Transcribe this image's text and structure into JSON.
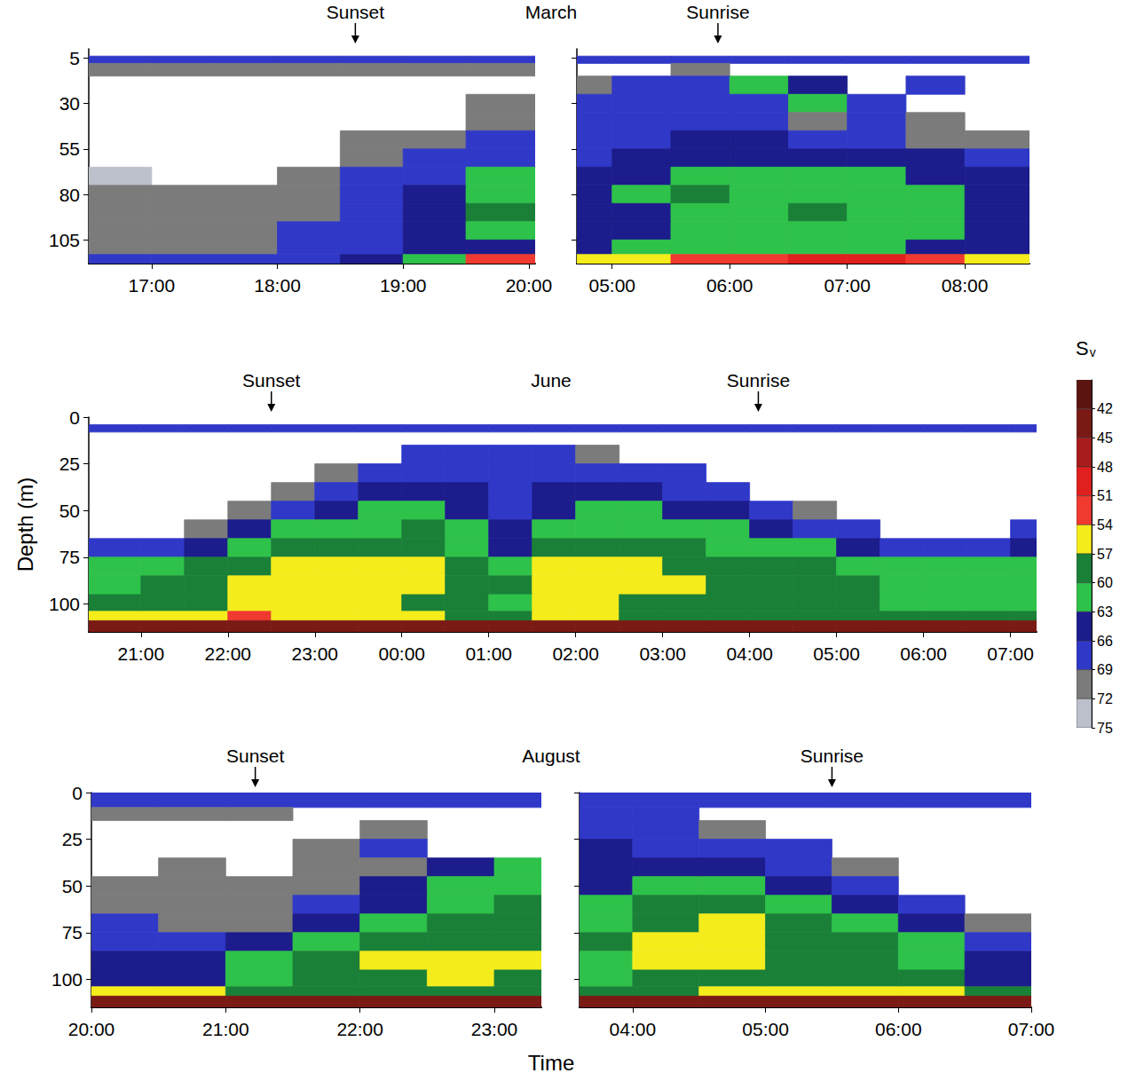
{
  "chart_data": [
    {
      "type": "heatmap",
      "title": "March",
      "xlim": [
        16.5,
        20.05
      ],
      "ylim": [
        0,
        118
      ],
      "xticks": [
        {
          "value": 17,
          "label": "17:00"
        },
        {
          "value": 18,
          "label": "18:00"
        },
        {
          "value": 19,
          "label": "19:00"
        },
        {
          "value": 20,
          "label": "20:00"
        }
      ],
      "yticks": [
        5,
        30,
        55,
        80,
        105
      ],
      "x_bins": [
        16.5,
        17,
        17.5,
        18,
        18.5,
        19,
        19.5,
        20.05
      ],
      "y_bins": [
        0,
        4,
        8,
        15,
        25,
        35,
        45,
        55,
        65,
        75,
        85,
        95,
        105,
        113,
        118
      ],
      "values": [
        [
          null,
          null,
          null,
          null,
          null,
          null,
          null
        ],
        [
          68,
          68,
          68,
          68,
          68,
          68,
          68
        ],
        [
          69,
          69,
          69,
          69,
          69,
          69,
          69
        ],
        [
          null,
          null,
          null,
          null,
          null,
          null,
          null
        ],
        [
          null,
          null,
          null,
          null,
          null,
          null,
          70
        ],
        [
          null,
          null,
          null,
          null,
          null,
          null,
          69
        ],
        [
          null,
          null,
          null,
          null,
          71,
          70,
          68
        ],
        [
          null,
          null,
          null,
          null,
          70,
          68,
          66
        ],
        [
          72,
          null,
          null,
          71,
          68,
          66,
          62
        ],
        [
          71,
          70,
          71,
          69,
          67,
          65,
          60
        ],
        [
          70,
          69,
          70,
          69,
          66,
          64,
          59
        ],
        [
          70,
          69,
          69,
          68,
          66,
          63,
          61
        ],
        [
          70,
          69,
          69,
          68,
          66,
          64,
          63
        ],
        [
          66,
          66,
          66,
          66,
          64,
          62,
          52
        ]
      ],
      "annotations": [
        {
          "text": "Sunset",
          "x": 18.62
        }
      ]
    },
    {
      "type": "heatmap",
      "tick_labels": "x",
      "xlim": [
        4.7,
        8.55
      ],
      "ylim": [
        0,
        118
      ],
      "xticks": [
        {
          "value": 5,
          "label": "05:00"
        },
        {
          "value": 6,
          "label": "06:00"
        },
        {
          "value": 7,
          "label": "07:00"
        },
        {
          "value": 8,
          "label": "08:00"
        }
      ],
      "yticks": [
        5,
        30,
        55,
        80,
        105
      ],
      "x_bins": [
        4.7,
        5,
        5.5,
        6,
        6.5,
        7,
        7.5,
        8,
        8.55
      ],
      "y_bins": [
        0,
        4,
        8,
        15,
        25,
        35,
        45,
        55,
        65,
        75,
        85,
        95,
        105,
        113,
        118
      ],
      "values": [
        [
          null,
          null,
          null,
          null,
          null,
          null,
          null,
          null
        ],
        [
          68,
          68,
          68,
          68,
          68,
          68,
          68,
          68
        ],
        [
          null,
          null,
          70,
          null,
          null,
          null,
          null,
          null
        ],
        [
          69,
          68,
          68,
          62,
          63,
          null,
          66,
          null
        ],
        [
          68,
          67,
          67,
          66,
          60,
          66,
          null,
          null
        ],
        [
          68,
          67,
          66,
          67,
          70,
          67,
          70,
          null
        ],
        [
          67,
          66,
          65,
          65,
          66,
          68,
          69,
          70
        ],
        [
          66,
          65,
          64,
          63,
          64,
          64,
          65,
          66
        ],
        [
          64,
          63,
          61,
          61,
          62,
          62,
          63,
          64
        ],
        [
          63,
          62,
          59,
          60,
          60,
          61,
          61,
          63
        ],
        [
          64,
          63,
          60,
          60,
          59,
          60,
          61,
          63
        ],
        [
          64,
          63,
          62,
          62,
          61,
          61,
          62,
          64
        ],
        [
          63,
          62,
          62,
          62,
          62,
          62,
          63,
          64
        ],
        [
          55,
          55,
          52,
          52,
          50,
          50,
          52,
          55
        ]
      ],
      "annotations": [
        {
          "text": "Sunrise",
          "x": 5.9
        }
      ]
    },
    {
      "type": "heatmap",
      "title": "June",
      "y_label": "Depth (m)",
      "xlim": [
        20.4,
        31.3
      ],
      "ylim": [
        0,
        115
      ],
      "xticks": [
        {
          "value": 21,
          "label": "21:00"
        },
        {
          "value": 22,
          "label": "22:00"
        },
        {
          "value": 23,
          "label": "23:00"
        },
        {
          "value": 24,
          "label": "00:00"
        },
        {
          "value": 25,
          "label": "01:00"
        },
        {
          "value": 26,
          "label": "02:00"
        },
        {
          "value": 27,
          "label": "03:00"
        },
        {
          "value": 28,
          "label": "04:00"
        },
        {
          "value": 29,
          "label": "05:00"
        },
        {
          "value": 30,
          "label": "06:00"
        },
        {
          "value": 31,
          "label": "07:00"
        }
      ],
      "yticks": [
        0,
        25,
        50,
        75,
        100
      ],
      "x_bins": [
        20.4,
        21,
        21.5,
        22,
        22.5,
        23,
        23.5,
        24,
        24.5,
        25,
        25.5,
        26,
        26.5,
        27,
        27.5,
        28,
        28.5,
        29,
        29.5,
        30,
        30.5,
        31,
        31.3
      ],
      "y_bins": [
        0,
        4,
        8,
        15,
        25,
        35,
        45,
        55,
        65,
        75,
        85,
        95,
        104,
        109,
        115
      ],
      "values": [
        [
          null,
          null,
          null,
          null,
          null,
          null,
          null,
          null,
          null,
          null,
          null,
          null,
          null,
          null,
          null,
          null,
          null,
          null,
          null,
          null,
          null,
          null
        ],
        [
          66,
          66,
          66,
          66,
          66,
          66,
          66,
          66,
          66,
          66,
          66,
          66,
          66,
          66,
          66,
          66,
          66,
          66,
          66,
          66,
          66,
          66
        ],
        [
          null,
          null,
          null,
          null,
          null,
          null,
          null,
          null,
          null,
          null,
          null,
          null,
          null,
          null,
          null,
          null,
          null,
          null,
          null,
          null,
          null,
          null
        ],
        [
          null,
          null,
          null,
          null,
          null,
          null,
          null,
          68,
          68,
          68,
          68,
          69,
          null,
          null,
          null,
          null,
          null,
          null,
          null,
          null,
          null,
          null
        ],
        [
          null,
          null,
          null,
          null,
          null,
          69,
          67,
          66,
          66,
          67,
          66,
          66,
          67,
          68,
          null,
          null,
          null,
          null,
          null,
          null,
          null,
          null
        ],
        [
          null,
          null,
          null,
          null,
          69,
          66,
          64,
          64,
          65,
          66,
          65,
          64,
          65,
          66,
          68,
          null,
          null,
          null,
          null,
          null,
          null,
          null
        ],
        [
          null,
          null,
          null,
          69,
          66,
          63,
          62,
          62,
          64,
          66,
          63,
          62,
          62,
          63,
          65,
          68,
          69,
          null,
          null,
          null,
          null,
          null
        ],
        [
          null,
          null,
          69,
          65,
          62,
          60,
          60,
          59,
          62,
          65,
          61,
          60,
          60,
          61,
          62,
          64,
          66,
          68,
          null,
          null,
          null,
          68
        ],
        [
          67,
          66,
          63,
          61,
          59,
          58,
          57,
          57,
          60,
          63,
          58,
          57,
          58,
          59,
          60,
          61,
          62,
          63,
          66,
          67,
          68,
          64
        ],
        [
          62,
          61,
          59,
          58,
          56,
          56,
          55,
          56,
          58,
          61,
          56,
          55,
          56,
          57,
          58,
          59,
          59,
          60,
          61,
          62,
          62,
          61
        ],
        [
          60,
          58,
          57,
          56,
          55,
          54,
          55,
          56,
          57,
          59,
          54,
          54,
          55,
          56,
          57,
          58,
          58,
          59,
          60,
          60,
          61,
          60
        ],
        [
          59,
          57,
          57,
          55,
          55,
          55,
          56,
          57,
          58,
          60,
          56,
          56,
          57,
          57,
          58,
          58,
          59,
          59,
          60,
          60,
          60,
          60
        ],
        [
          56,
          55,
          54,
          53,
          54,
          55,
          56,
          56,
          57,
          57,
          56,
          56,
          57,
          57,
          57,
          57,
          57,
          58,
          58,
          58,
          57,
          57
        ],
        [
          42,
          42,
          42,
          42,
          42,
          42,
          42,
          42,
          42,
          42,
          42,
          42,
          42,
          42,
          42,
          42,
          42,
          42,
          42,
          42,
          42,
          42
        ]
      ],
      "annotations": [
        {
          "text": "Sunset",
          "x": 22.5
        },
        {
          "text": "Sunrise",
          "x": 28.1
        }
      ],
      "colorbar": {
        "label": "Sv",
        "range": [
          39,
          75
        ],
        "ticks": [
          42,
          45,
          48,
          51,
          54,
          57,
          60,
          63,
          66,
          69,
          72,
          75
        ],
        "colors": [
          "#5c1410",
          "#7a1a14",
          "#a81c1c",
          "#e0201e",
          "#f03a30",
          "#f5ec1c",
          "#1a8038",
          "#2ec24a",
          "#1c1c8c",
          "#3038c8",
          "#7b7b7b",
          "#bcc0ca"
        ]
      }
    },
    {
      "type": "heatmap",
      "title": "August",
      "x_label": "Time",
      "xlim": [
        20,
        23.35
      ],
      "ylim": [
        0,
        115
      ],
      "xticks": [
        {
          "value": 20,
          "label": "20:00"
        },
        {
          "value": 21,
          "label": "21:00"
        },
        {
          "value": 22,
          "label": "22:00"
        },
        {
          "value": 23,
          "label": "23:00"
        }
      ],
      "yticks": [
        0,
        25,
        50,
        75,
        100
      ],
      "x_bins": [
        20,
        20.5,
        21,
        21.5,
        22,
        22.5,
        23,
        23.35
      ],
      "y_bins": [
        0,
        4,
        8,
        15,
        25,
        35,
        45,
        55,
        65,
        75,
        85,
        95,
        104,
        109,
        115
      ],
      "values": [
        [
          66,
          66,
          66,
          66,
          66,
          66,
          66
        ],
        [
          67,
          67,
          67,
          68,
          68,
          68,
          68
        ],
        [
          70,
          70,
          71,
          null,
          null,
          null,
          null
        ],
        [
          null,
          null,
          null,
          null,
          71,
          null,
          null
        ],
        [
          null,
          null,
          null,
          70,
          68,
          null,
          null
        ],
        [
          null,
          71,
          null,
          70,
          70,
          64,
          62
        ],
        [
          70,
          70,
          71,
          69,
          65,
          61,
          60
        ],
        [
          69,
          69,
          70,
          68,
          63,
          60,
          59
        ],
        [
          68,
          69,
          70,
          64,
          61,
          59,
          58
        ],
        [
          66,
          67,
          63,
          60,
          58,
          57,
          57
        ],
        [
          64,
          65,
          60,
          57,
          56,
          55,
          55
        ],
        [
          63,
          63,
          60,
          58,
          57,
          56,
          57
        ],
        [
          56,
          56,
          58,
          58,
          58,
          58,
          58
        ],
        [
          42,
          42,
          42,
          42,
          42,
          42,
          42
        ]
      ],
      "annotations": [
        {
          "text": "Sunset",
          "x": 21.22
        }
      ]
    },
    {
      "type": "heatmap",
      "tick_labels": "x",
      "xlim": [
        3.6,
        7
      ],
      "ylim": [
        0,
        115
      ],
      "xticks": [
        {
          "value": 4,
          "label": "04:00"
        },
        {
          "value": 5,
          "label": "05:00"
        },
        {
          "value": 6,
          "label": "06:00"
        },
        {
          "value": 7,
          "label": "07:00"
        }
      ],
      "yticks": [
        0,
        25,
        50,
        75,
        100
      ],
      "x_bins": [
        3.6,
        4,
        4.5,
        5,
        5.5,
        6,
        6.5,
        7
      ],
      "y_bins": [
        0,
        4,
        8,
        15,
        25,
        35,
        45,
        55,
        65,
        75,
        85,
        95,
        104,
        109,
        115
      ],
      "values": [
        [
          66,
          66,
          66,
          66,
          66,
          66,
          66
        ],
        [
          66,
          67,
          67,
          67,
          67,
          67,
          67
        ],
        [
          67,
          68,
          null,
          null,
          null,
          null,
          null
        ],
        [
          66,
          68,
          69,
          null,
          null,
          null,
          null
        ],
        [
          65,
          66,
          67,
          68,
          null,
          null,
          null
        ],
        [
          64,
          63,
          65,
          66,
          69,
          null,
          null
        ],
        [
          63,
          61,
          62,
          64,
          67,
          null,
          null
        ],
        [
          61,
          59,
          59,
          61,
          64,
          67,
          null
        ],
        [
          60,
          57,
          56,
          59,
          61,
          64,
          69
        ],
        [
          59,
          55,
          54,
          57,
          59,
          61,
          66
        ],
        [
          60,
          56,
          55,
          57,
          58,
          60,
          64
        ],
        [
          61,
          57,
          57,
          58,
          59,
          59,
          63
        ],
        [
          58,
          57,
          55,
          54,
          55,
          56,
          58
        ],
        [
          42,
          42,
          42,
          42,
          42,
          42,
          42
        ]
      ],
      "annotations": [
        {
          "text": "Sunrise",
          "x": 5.5
        }
      ]
    }
  ]
}
